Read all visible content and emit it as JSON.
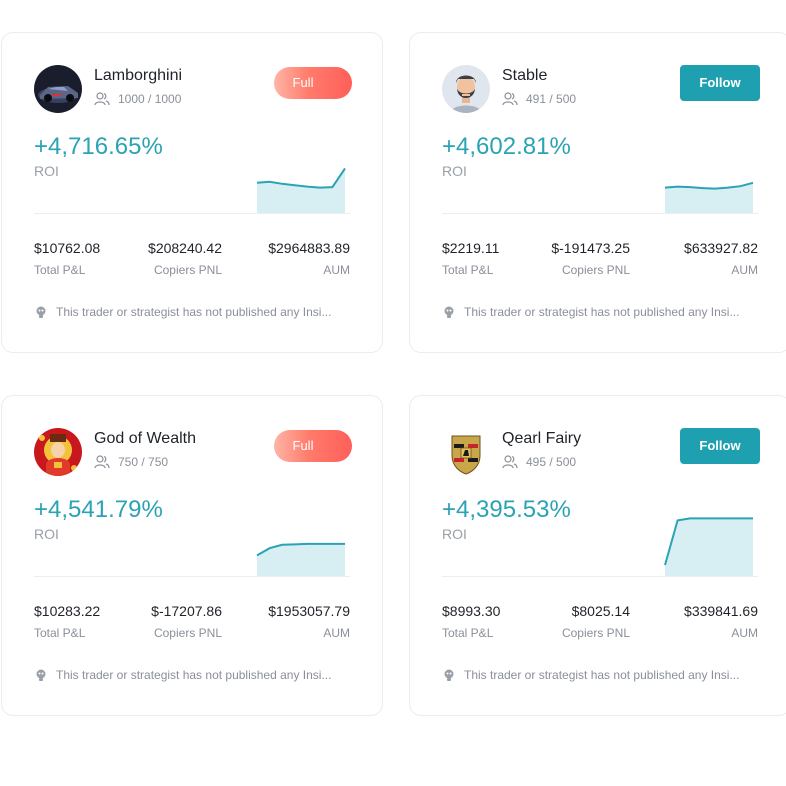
{
  "colors": {
    "accent": "#2aa3b5",
    "follow_button": "#1ea0b1",
    "full_button": "#ff6b63"
  },
  "traders": [
    {
      "name": "Lamborghini",
      "copiers": "1000 / 1000",
      "button": "Full",
      "roi": "+4,716.65%",
      "roi_label": "ROI",
      "stats": [
        {
          "value": "$10762.08",
          "label": "Total P&L"
        },
        {
          "value": "$208240.42",
          "label": "Copiers PNL"
        },
        {
          "value": "$2964883.89",
          "label": "AUM"
        }
      ],
      "insight": "This trader or strategist has not published any Insi...",
      "avatar_icon": "sports-car-avatar-icon",
      "spark": [
        0.4,
        0.42,
        0.38,
        0.35,
        0.32,
        0.3,
        0.31,
        0.7
      ]
    },
    {
      "name": "Stable",
      "copiers": "491 / 500",
      "button": "Follow",
      "roi": "+4,602.81%",
      "roi_label": "ROI",
      "stats": [
        {
          "value": "$2219.11",
          "label": "Total P&L"
        },
        {
          "value": "$-191473.25",
          "label": "Copiers PNL"
        },
        {
          "value": "$633927.82",
          "label": "AUM"
        }
      ],
      "insight": "This trader or strategist has not published any Insi...",
      "avatar_icon": "bearded-man-avatar-icon",
      "spark": [
        0.3,
        0.32,
        0.31,
        0.29,
        0.28,
        0.3,
        0.33,
        0.4
      ]
    },
    {
      "name": "God of Wealth",
      "copiers": "750 / 750",
      "button": "Full",
      "roi": "+4,541.79%",
      "roi_label": "ROI",
      "stats": [
        {
          "value": "$10283.22",
          "label": "Total P&L"
        },
        {
          "value": "$-17207.86",
          "label": "Copiers PNL"
        },
        {
          "value": "$1953057.79",
          "label": "AUM"
        }
      ],
      "insight": "This trader or strategist has not published any Insi...",
      "avatar_icon": "god-of-wealth-avatar-icon",
      "spark": [
        0.2,
        0.35,
        0.42,
        0.43,
        0.44,
        0.44,
        0.44,
        0.44
      ]
    },
    {
      "name": "Qearl Fairy",
      "copiers": "495 / 500",
      "button": "Follow",
      "roi": "+4,395.53%",
      "roi_label": "ROI",
      "stats": [
        {
          "value": "$8993.30",
          "label": "Total P&L"
        },
        {
          "value": "$8025.14",
          "label": "Copiers PNL"
        },
        {
          "value": "$339841.69",
          "label": "AUM"
        }
      ],
      "insight": "This trader or strategist has not published any Insi...",
      "avatar_icon": "porsche-crest-avatar-icon",
      "spark": [
        0.0,
        0.93,
        0.97,
        0.97,
        0.97,
        0.97,
        0.97,
        0.97
      ]
    }
  ]
}
